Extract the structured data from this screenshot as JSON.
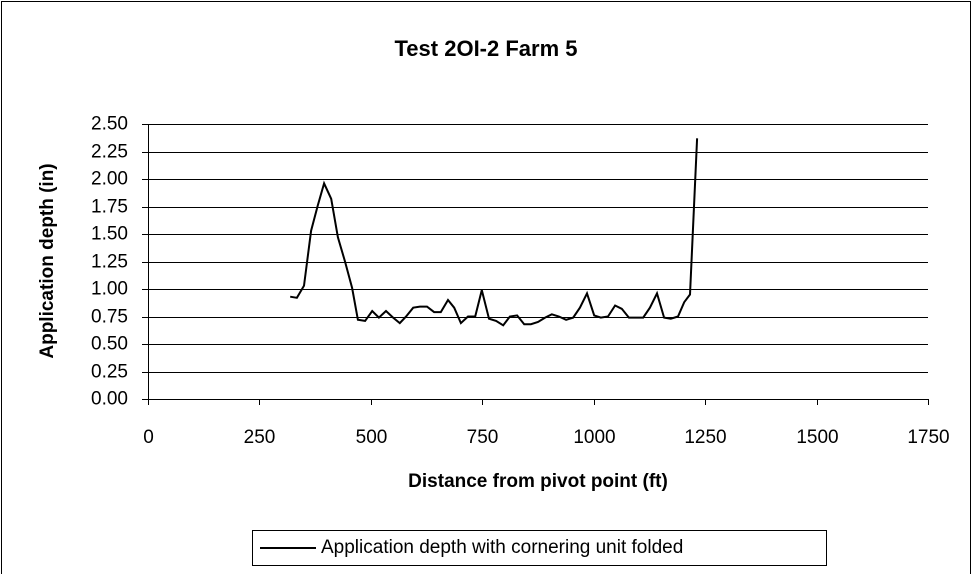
{
  "chart_data": {
    "type": "line",
    "title": "Test 2OI-2 Farm 5",
    "x_label": "Distance from pivot point (ft)",
    "y_label": "Application depth (in)",
    "series": [
      {
        "name": "Application depth with cornering unit folded",
        "color": "#000000",
        "x": [
          319,
          334,
          350,
          366,
          381,
          395,
          411,
          426,
          442,
          458,
          471,
          487,
          503,
          518,
          534,
          550,
          565,
          579,
          595,
          610,
          626,
          642,
          657,
          673,
          687,
          702,
          718,
          734,
          749,
          765,
          781,
          797,
          812,
          828,
          844,
          859,
          875,
          891,
          906,
          922,
          938,
          954,
          969,
          985,
          1001,
          1016,
          1032,
          1048,
          1063,
          1079,
          1095,
          1111,
          1126,
          1142,
          1158,
          1173,
          1189,
          1203,
          1216,
          1232
        ],
        "values": [
          0.93,
          0.92,
          1.03,
          1.53,
          1.76,
          1.96,
          1.82,
          1.47,
          1.25,
          1.01,
          0.72,
          0.71,
          0.8,
          0.74,
          0.8,
          0.74,
          0.69,
          0.75,
          0.83,
          0.84,
          0.84,
          0.79,
          0.79,
          0.9,
          0.83,
          0.69,
          0.75,
          0.75,
          0.99,
          0.73,
          0.71,
          0.67,
          0.75,
          0.76,
          0.68,
          0.68,
          0.7,
          0.74,
          0.77,
          0.75,
          0.72,
          0.74,
          0.83,
          0.96,
          0.76,
          0.74,
          0.75,
          0.85,
          0.82,
          0.74,
          0.74,
          0.74,
          0.83,
          0.96,
          0.74,
          0.73,
          0.75,
          0.88,
          0.95,
          2.37
        ]
      }
    ],
    "xlim": [
      0,
      1750
    ],
    "xticks": [
      0,
      250,
      500,
      750,
      1000,
      1250,
      1500,
      1750
    ],
    "ylim": [
      0,
      2.5
    ],
    "yticks": [
      {
        "value": 0,
        "label": "0.00"
      },
      {
        "value": 0.25,
        "label": "0.25"
      },
      {
        "value": 0.5,
        "label": "0.50"
      },
      {
        "value": 0.75,
        "label": "0.75"
      },
      {
        "value": 1,
        "label": "1.00"
      },
      {
        "value": 1.25,
        "label": "1.25"
      },
      {
        "value": 1.5,
        "label": "1.50"
      },
      {
        "value": 1.75,
        "label": "1.75"
      },
      {
        "value": 2,
        "label": "2.00"
      },
      {
        "value": 2.25,
        "label": "2.25"
      },
      {
        "value": 2.5,
        "label": "2.50"
      }
    ],
    "grid": true,
    "legend": "bottom"
  }
}
